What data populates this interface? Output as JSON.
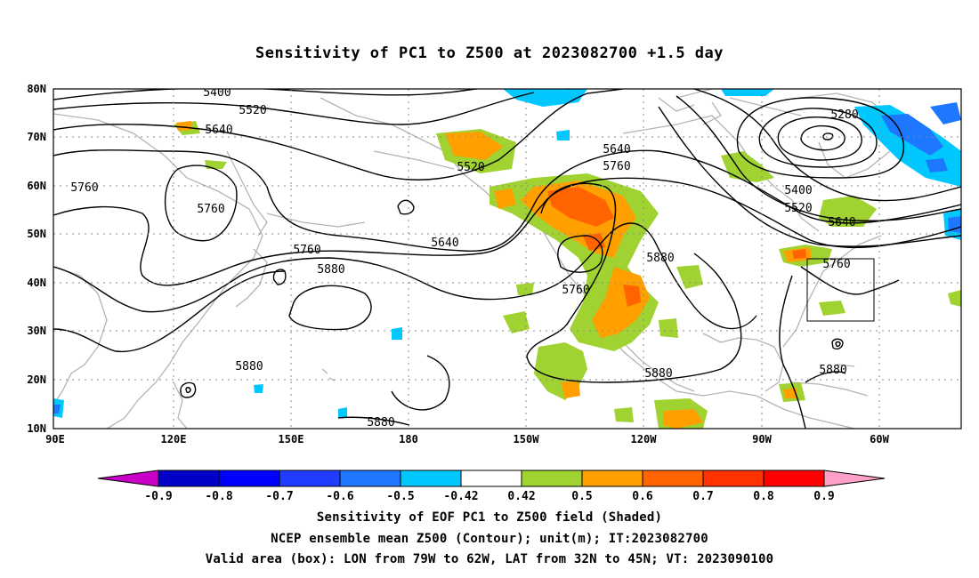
{
  "title": "Sensitivity of PC1 to Z500 at 2023082700 +1.5 day",
  "map": {
    "lat_labels": [
      "80N",
      "70N",
      "60N",
      "50N",
      "40N",
      "30N",
      "20N",
      "10N"
    ],
    "lon_labels": [
      "90E",
      "120E",
      "150E",
      "180",
      "150W",
      "120W",
      "90W",
      "60W"
    ],
    "contour_labels": [
      "5400",
      "5520",
      "5640",
      "5760",
      "5520",
      "5640",
      "5760",
      "5880",
      "5760",
      "5640",
      "5760",
      "5880",
      "5280",
      "5400",
      "5520",
      "5640",
      "5760",
      "5880",
      "5880",
      "5880",
      "5880"
    ]
  },
  "colorbar": {
    "labels": [
      "-0.9",
      "-0.8",
      "-0.7",
      "-0.6",
      "-0.5",
      "-0.42",
      "0.42",
      "0.5",
      "0.6",
      "0.7",
      "0.8",
      "0.9"
    ],
    "colors": [
      "#c800c8",
      "#0000c8",
      "#0000ff",
      "#1f3cff",
      "#1e78ff",
      "#00c8ff",
      "#ffffff",
      "#a0d232",
      "#ffa000",
      "#ff6400",
      "#ff3200",
      "#ff0000",
      "#ffa0c8"
    ]
  },
  "captions": {
    "line1": "Sensitivity of EOF PC1 to Z500 field (Shaded)",
    "line2": "NCEP ensemble mean Z500 (Contour); unit(m); IT:2023082700",
    "line3": "Valid area (box): LON from 79W to 62W, LAT from 32N to 45N; VT: 2023090100"
  }
}
